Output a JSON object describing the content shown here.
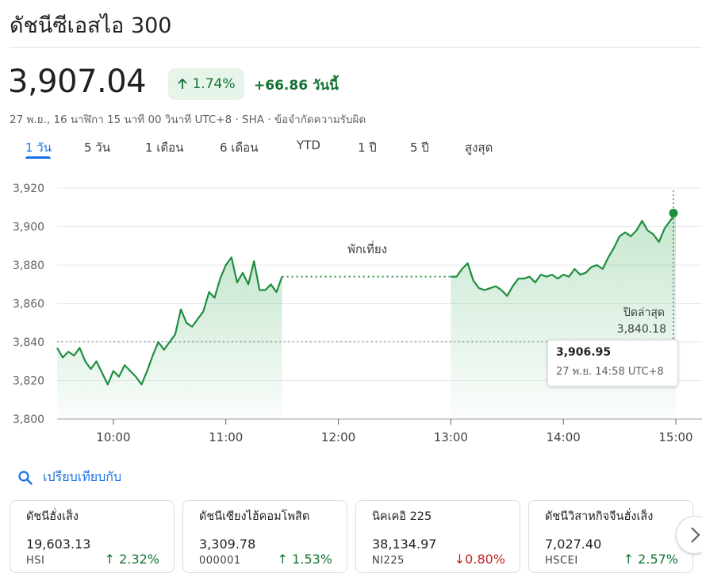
{
  "title": "ดัชนีซีเอสไอ 300",
  "price": "3,907.04",
  "change": {
    "percent": "1.74%",
    "absolute": "+66.86 วันนี้",
    "color": "#137333"
  },
  "meta": "27 พ.ย., 16 นาฬิกา 15 นาที 00 วินาที UTC+8 · SHA · ข้อจำกัดความรับผิด",
  "tabs": [
    "1 วัน",
    "5 วัน",
    "1 เดือน",
    "6 เดือน",
    "YTD",
    "1 ปี",
    "5 ปี",
    "สูงสุด"
  ],
  "active_tab": "1 วัน",
  "chart_data": {
    "type": "line",
    "y_ticks": [
      "3,920",
      "3,900",
      "3,880",
      "3,860",
      "3,840",
      "3,820",
      "3,800"
    ],
    "x_ticks": [
      "10:00",
      "11:00",
      "12:00",
      "13:00",
      "14:00",
      "15:00"
    ],
    "ylim": [
      3800,
      3920
    ],
    "grid": true,
    "break_label": "พักเที่ยง",
    "previous_close_label": "ปิดล่าสุด",
    "previous_close_value": "3,840.18",
    "previous_close": 3840.18,
    "line_color": "#1e8e3e",
    "series": [
      {
        "points": [
          [
            "09:30",
            3837
          ],
          [
            "09:33",
            3832
          ],
          [
            "09:36",
            3835
          ],
          [
            "09:39",
            3833
          ],
          [
            "09:42",
            3837
          ],
          [
            "09:45",
            3830
          ],
          [
            "09:48",
            3826
          ],
          [
            "09:51",
            3830
          ],
          [
            "09:54",
            3824
          ],
          [
            "09:57",
            3818
          ],
          [
            "10:00",
            3825
          ],
          [
            "10:03",
            3822
          ],
          [
            "10:06",
            3828
          ],
          [
            "10:09",
            3825
          ],
          [
            "10:12",
            3822
          ],
          [
            "10:15",
            3818
          ],
          [
            "10:18",
            3825
          ],
          [
            "10:21",
            3833
          ],
          [
            "10:24",
            3840
          ],
          [
            "10:27",
            3836
          ],
          [
            "10:30",
            3840
          ],
          [
            "10:33",
            3844
          ],
          [
            "10:36",
            3857
          ],
          [
            "10:39",
            3850
          ],
          [
            "10:42",
            3848
          ],
          [
            "10:45",
            3852
          ],
          [
            "10:48",
            3856
          ],
          [
            "10:51",
            3866
          ],
          [
            "10:54",
            3863
          ],
          [
            "10:57",
            3873
          ],
          [
            "11:00",
            3880
          ],
          [
            "11:03",
            3884
          ],
          [
            "11:06",
            3871
          ],
          [
            "11:09",
            3876
          ],
          [
            "11:12",
            3870
          ],
          [
            "11:15",
            3882
          ],
          [
            "11:18",
            3867
          ],
          [
            "11:21",
            3867
          ],
          [
            "11:24",
            3870
          ],
          [
            "11:27",
            3866
          ],
          [
            "11:30",
            3874
          ]
        ]
      },
      {
        "points": [
          [
            "13:00",
            3874
          ],
          [
            "13:03",
            3874
          ],
          [
            "13:06",
            3878
          ],
          [
            "13:09",
            3881
          ],
          [
            "13:12",
            3872
          ],
          [
            "13:15",
            3868
          ],
          [
            "13:18",
            3867
          ],
          [
            "13:21",
            3868
          ],
          [
            "13:24",
            3869
          ],
          [
            "13:27",
            3867
          ],
          [
            "13:30",
            3864
          ],
          [
            "13:33",
            3869
          ],
          [
            "13:36",
            3873
          ],
          [
            "13:39",
            3873
          ],
          [
            "13:42",
            3874
          ],
          [
            "13:45",
            3871
          ],
          [
            "13:48",
            3875
          ],
          [
            "13:51",
            3874
          ],
          [
            "13:54",
            3875
          ],
          [
            "13:57",
            3873
          ],
          [
            "14:00",
            3875
          ],
          [
            "14:03",
            3874
          ],
          [
            "14:06",
            3878
          ],
          [
            "14:09",
            3875
          ],
          [
            "14:12",
            3876
          ],
          [
            "14:15",
            3879
          ],
          [
            "14:18",
            3880
          ],
          [
            "14:21",
            3878
          ],
          [
            "14:24",
            3884
          ],
          [
            "14:27",
            3889
          ],
          [
            "14:30",
            3895
          ],
          [
            "14:33",
            3897
          ],
          [
            "14:36",
            3895
          ],
          [
            "14:39",
            3898
          ],
          [
            "14:42",
            3903
          ],
          [
            "14:45",
            3898
          ],
          [
            "14:48",
            3896
          ],
          [
            "14:51",
            3892
          ],
          [
            "14:54",
            3899
          ],
          [
            "14:57",
            3903
          ],
          [
            "15:00",
            3907
          ]
        ]
      }
    ]
  },
  "tooltip": {
    "value": "3,906.95",
    "time": "27 พ.ย. 14:58 UTC+8"
  },
  "compare_label": "เปรียบเทียบกับ",
  "cards": [
    {
      "name": "ดัชนีฮั่งเส็ง",
      "price": "19,603.13",
      "symbol": "HSI",
      "change": "2.32%",
      "direction": "up"
    },
    {
      "name": "ดัชนีเซียงไฮ้คอมโพสิต",
      "price": "3,309.78",
      "symbol": "000001",
      "change": "1.53%",
      "direction": "up"
    },
    {
      "name": "นิคเคอิ 225",
      "price": "38,134.97",
      "symbol": "NI225",
      "change": "0.80%",
      "direction": "down"
    },
    {
      "name": "ดัชนีวิสาหกิจจีนฮั่งเส็ง",
      "price": "7,027.40",
      "symbol": "HSCEI",
      "change": "2.57%",
      "direction": "up"
    }
  ],
  "icons": {
    "search": "search-icon",
    "next": "chevron-right-icon",
    "up": "arrow-up-icon",
    "down": "arrow-down-icon"
  }
}
